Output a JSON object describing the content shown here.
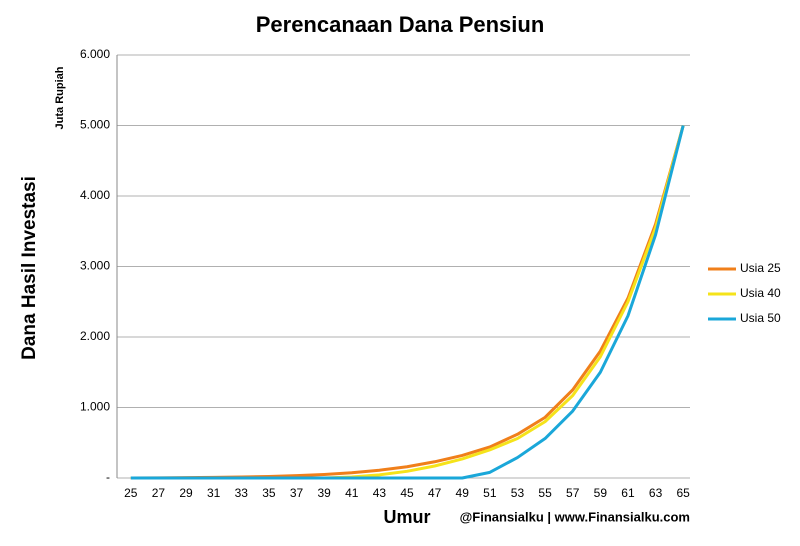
{
  "chart_data": {
    "type": "line",
    "title": "Perencanaan Dana Pensiun",
    "y_label": "Dana Hasil Investasi",
    "y_unit": "Juta Rupiah",
    "x_label": "Umur",
    "credit": "@Finansialku | www.Finansialku.com",
    "x": [
      25,
      27,
      29,
      31,
      33,
      35,
      37,
      39,
      41,
      43,
      45,
      47,
      49,
      51,
      53,
      55,
      57,
      59,
      61,
      63,
      65
    ],
    "series": [
      {
        "name": "Usia 25",
        "color": "#f07f1a",
        "values": [
          0,
          2,
          5,
          9,
          15,
          22,
          33,
          50,
          75,
          110,
          160,
          230,
          320,
          440,
          620,
          860,
          1250,
          1800,
          2550,
          3600,
          5000
        ]
      },
      {
        "name": "Usia 40",
        "color": "#f5e31a",
        "values": [
          0,
          0,
          0,
          0,
          0,
          0,
          0,
          0,
          15,
          45,
          95,
          170,
          270,
          400,
          560,
          800,
          1170,
          1720,
          2500,
          3550,
          5000
        ]
      },
      {
        "name": "Usia 50",
        "color": "#1aa7d9",
        "values": [
          0,
          0,
          0,
          0,
          0,
          0,
          0,
          0,
          0,
          0,
          0,
          0,
          0,
          80,
          290,
          560,
          950,
          1500,
          2300,
          3450,
          5000
        ]
      }
    ],
    "xlim": [
      24,
      66
    ],
    "xticks": [
      25,
      27,
      29,
      31,
      33,
      35,
      37,
      39,
      41,
      43,
      45,
      47,
      49,
      51,
      53,
      55,
      57,
      59,
      61,
      63,
      65
    ],
    "ylim": [
      0,
      6000
    ],
    "yticks": [
      {
        "value": 0,
        "label": "-"
      },
      {
        "value": 1000,
        "label": "1.000"
      },
      {
        "value": 2000,
        "label": "2.000"
      },
      {
        "value": 3000,
        "label": "3.000"
      },
      {
        "value": 4000,
        "label": "4.000"
      },
      {
        "value": 5000,
        "label": "5.000"
      },
      {
        "value": 6000,
        "label": "6.000"
      }
    ],
    "grid": true,
    "legend": "right"
  }
}
